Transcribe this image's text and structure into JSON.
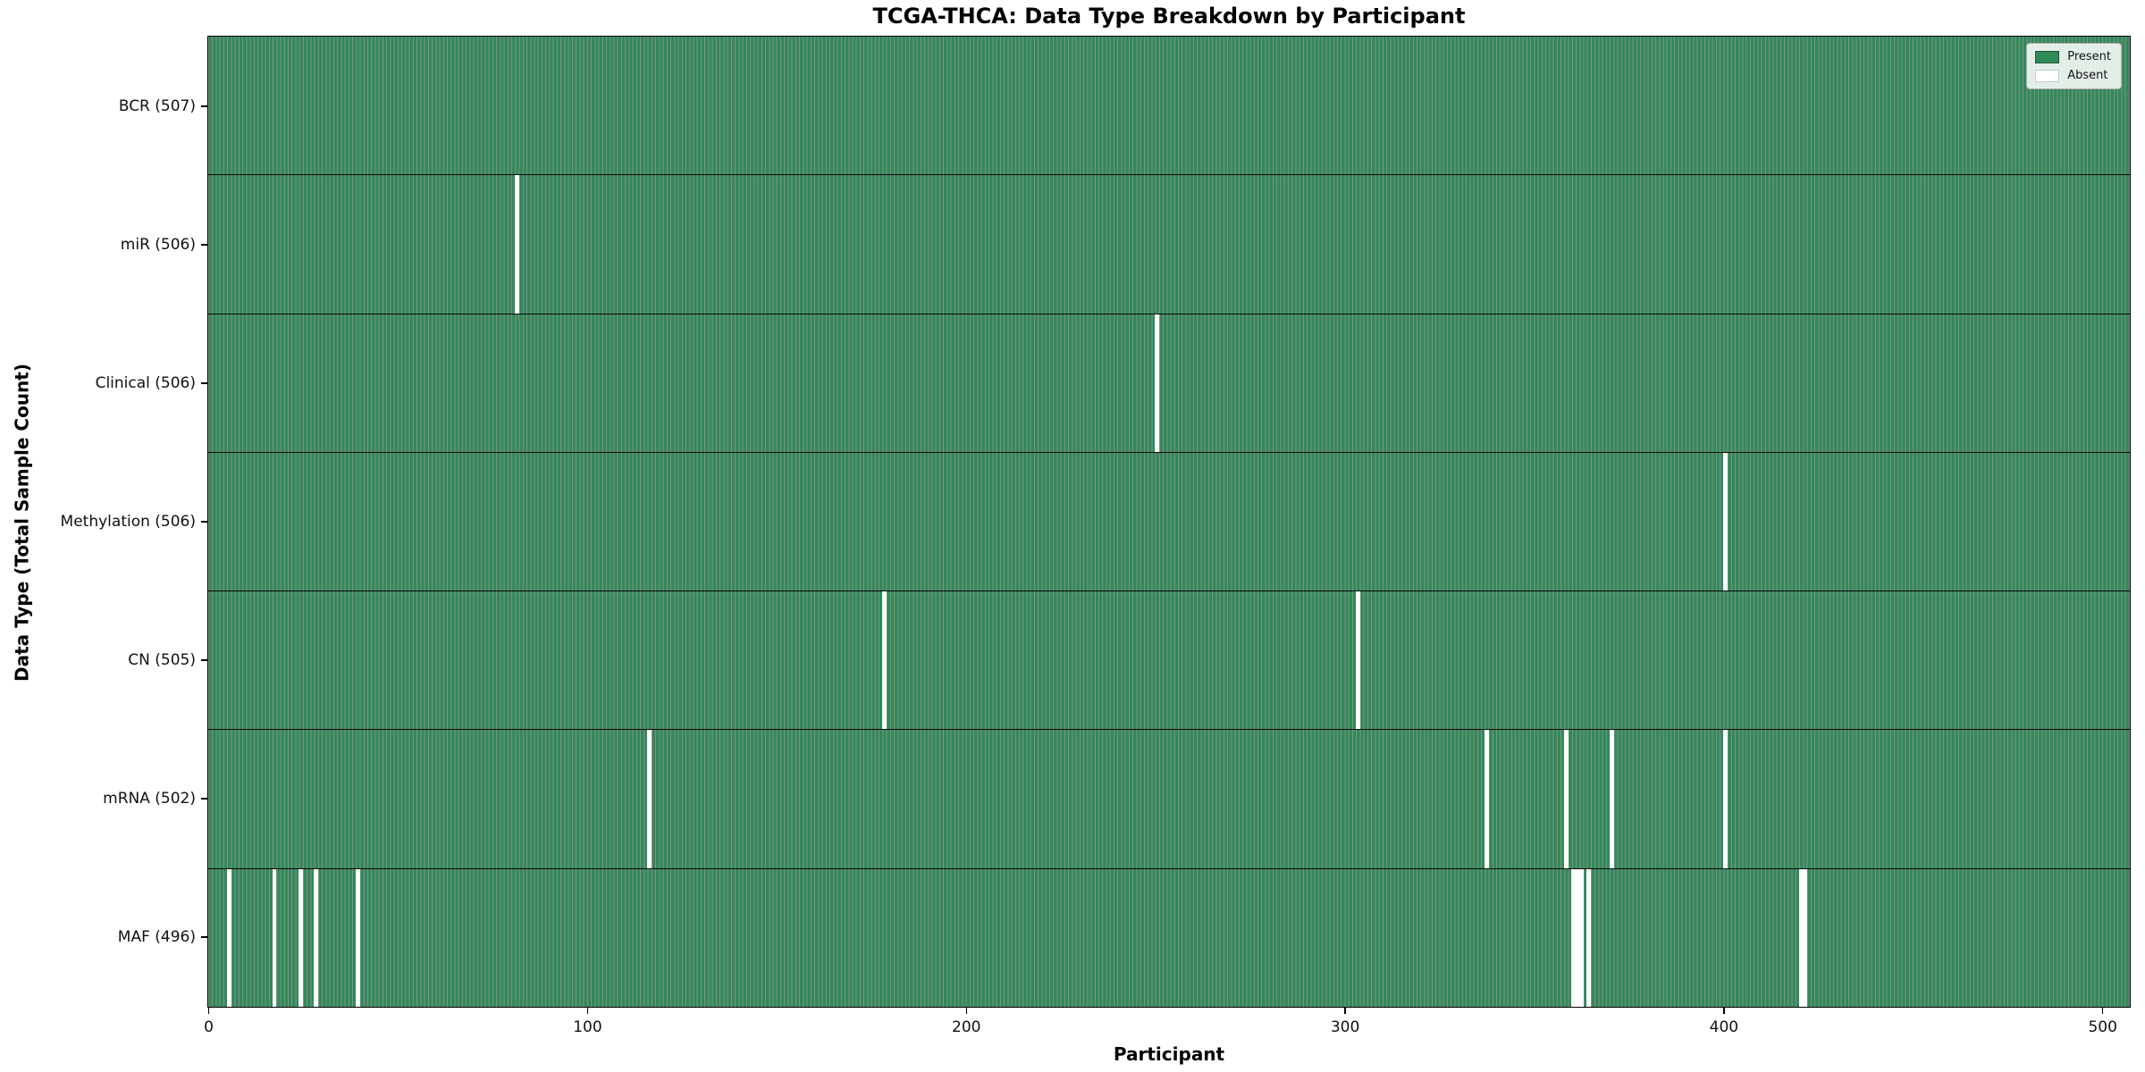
{
  "chart_data": {
    "type": "heatmap",
    "title": "TCGA-THCA: Data Type Breakdown by Participant",
    "xlabel": "Participant",
    "ylabel": "Data Type (Total Sample Count)",
    "x_ticks": [
      0,
      100,
      200,
      300,
      400,
      500
    ],
    "x_range": [
      0,
      507
    ],
    "n_participants": 507,
    "grid": false,
    "legend_position": "upper right",
    "legend_items": [
      {
        "label": "Present",
        "color": "#2e8b57"
      },
      {
        "label": "Absent",
        "color": "#ffffff"
      }
    ],
    "rows": [
      {
        "label": "BCR (507)",
        "name": "BCR",
        "total": 507,
        "absent_participants": []
      },
      {
        "label": "miR (506)",
        "name": "miR",
        "total": 506,
        "absent_participants": [
          81
        ]
      },
      {
        "label": "Clinical (506)",
        "name": "Clinical",
        "total": 506,
        "absent_participants": [
          250
        ]
      },
      {
        "label": "Methylation (506)",
        "name": "Methylation",
        "total": 506,
        "absent_participants": [
          400
        ]
      },
      {
        "label": "CN (505)",
        "name": "CN",
        "total": 505,
        "absent_participants": [
          178,
          303
        ]
      },
      {
        "label": "mRNA (502)",
        "name": "mRNA",
        "total": 502,
        "absent_participants": [
          116,
          337,
          358,
          370,
          400
        ]
      },
      {
        "label": "MAF (496)",
        "name": "MAF",
        "total": 496,
        "absent_participants": [
          5,
          17,
          24,
          28,
          39,
          360,
          361,
          362,
          364,
          420,
          421
        ]
      }
    ],
    "colors": {
      "present": "#2e8b57",
      "bar_edge": "rgba(0,0,0,0.45)",
      "absent": "#ffffff",
      "separator": "#0a0a0a"
    }
  }
}
